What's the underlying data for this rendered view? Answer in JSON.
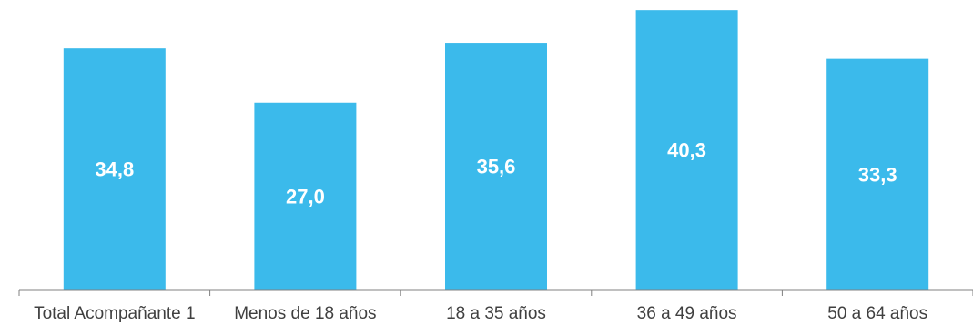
{
  "chart_data": {
    "type": "bar",
    "categories": [
      "Total Acompañante 1",
      "Menos de 18 años",
      "18 a 35 años",
      "36 a 49 años",
      "50 a 64 años"
    ],
    "values": [
      34.8,
      27.0,
      35.6,
      40.3,
      33.3
    ],
    "value_labels": [
      "34,8",
      "27,0",
      "35,6",
      "40,3",
      "33,3"
    ],
    "bar_color": "#3BBAEB",
    "value_label_color": "#FFFFFF",
    "ylim": [
      0,
      41.5
    ],
    "grid": false,
    "legend": "none"
  }
}
